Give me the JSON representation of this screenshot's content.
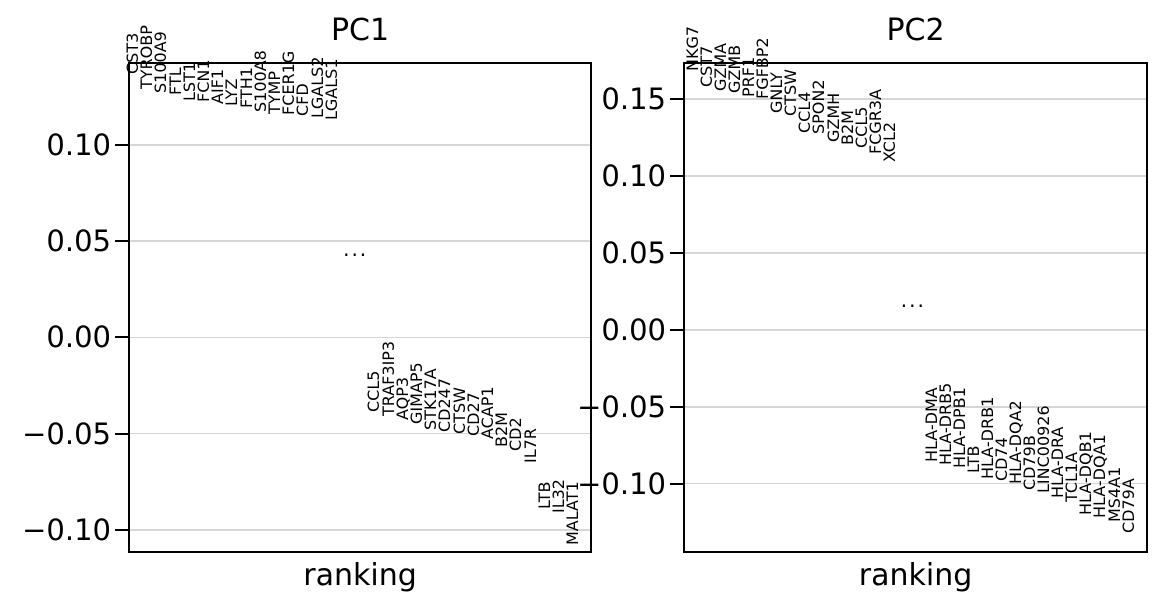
{
  "figure": {
    "background": "#ffffff",
    "text_color": "#000000",
    "grid_color": "#d6d6d6",
    "spine_color": "#000000",
    "ellipsis_label": "..."
  },
  "chart_data": [
    {
      "type": "scatter",
      "title": "PC1",
      "xlabel": "ranking",
      "ylim": [
        -0.112,
        0.143
      ],
      "grid": true,
      "yticks": [
        {
          "value": 0.1,
          "label": "0.10"
        },
        {
          "value": 0.05,
          "label": "0.05"
        },
        {
          "value": 0.0,
          "label": "0.00"
        },
        {
          "value": -0.05,
          "label": "−0.05"
        },
        {
          "value": -0.1,
          "label": "−0.10"
        }
      ],
      "series": [
        {
          "name": "top_genes",
          "points": [
            {
              "gene": "CST3",
              "loading": 0.137
            },
            {
              "gene": "TYROBP",
              "loading": 0.129
            },
            {
              "gene": "S100A9",
              "loading": 0.127
            },
            {
              "gene": "FTL",
              "loading": 0.126
            },
            {
              "gene": "LST1",
              "loading": 0.123
            },
            {
              "gene": "FCN1",
              "loading": 0.122
            },
            {
              "gene": "AIF1",
              "loading": 0.121
            },
            {
              "gene": "LYZ",
              "loading": 0.12
            },
            {
              "gene": "FTH1",
              "loading": 0.119
            },
            {
              "gene": "S100A8",
              "loading": 0.117
            },
            {
              "gene": "TYMP",
              "loading": 0.116
            },
            {
              "gene": "FCER1G",
              "loading": 0.1155
            },
            {
              "gene": "CFD",
              "loading": 0.115
            },
            {
              "gene": "LGALS2",
              "loading": 0.114
            },
            {
              "gene": "LGALS1",
              "loading": 0.113
            }
          ]
        },
        {
          "name": "bottom_genes",
          "points": [
            {
              "gene": "CCL5",
              "loading": -0.039
            },
            {
              "gene": "TRAF3IP3",
              "loading": -0.041
            },
            {
              "gene": "AQP3",
              "loading": -0.043
            },
            {
              "gene": "GIMAP5",
              "loading": -0.045
            },
            {
              "gene": "STK17A",
              "loading": -0.048
            },
            {
              "gene": "CD247",
              "loading": -0.049
            },
            {
              "gene": "CTSW",
              "loading": -0.05
            },
            {
              "gene": "CD27",
              "loading": -0.051
            },
            {
              "gene": "ACAP1",
              "loading": -0.053
            },
            {
              "gene": "B2M",
              "loading": -0.057
            },
            {
              "gene": "CD2",
              "loading": -0.059
            },
            {
              "gene": "IL7R",
              "loading": -0.065
            },
            {
              "gene": "LTB",
              "loading": -0.089
            },
            {
              "gene": "IL32",
              "loading": -0.091
            },
            {
              "gene": "MALAT1",
              "loading": -0.108
            }
          ]
        }
      ],
      "ellipsis_value": 0.039
    },
    {
      "type": "scatter",
      "title": "PC2",
      "xlabel": "ranking",
      "ylim": [
        -0.145,
        0.174
      ],
      "grid": true,
      "yticks": [
        {
          "value": 0.15,
          "label": "0.15"
        },
        {
          "value": 0.1,
          "label": "0.10"
        },
        {
          "value": 0.05,
          "label": "0.05"
        },
        {
          "value": 0.0,
          "label": "0.00"
        },
        {
          "value": -0.05,
          "label": "−0.05"
        },
        {
          "value": -0.1,
          "label": "−0.10"
        }
      ],
      "series": [
        {
          "name": "top_genes",
          "points": [
            {
              "gene": "NKG7",
              "loading": 0.168
            },
            {
              "gene": "CST7",
              "loading": 0.158
            },
            {
              "gene": "GZMA",
              "loading": 0.155
            },
            {
              "gene": "GZMB",
              "loading": 0.154
            },
            {
              "gene": "PRF1",
              "loading": 0.151
            },
            {
              "gene": "FGFBP2",
              "loading": 0.15
            },
            {
              "gene": "GNLY",
              "loading": 0.141
            },
            {
              "gene": "CTSW",
              "loading": 0.139
            },
            {
              "gene": "CCL4",
              "loading": 0.128
            },
            {
              "gene": "SPON2",
              "loading": 0.127
            },
            {
              "gene": "GZMH",
              "loading": 0.122
            },
            {
              "gene": "B2M",
              "loading": 0.12
            },
            {
              "gene": "CCL5",
              "loading": 0.118
            },
            {
              "gene": "FCGR3A",
              "loading": 0.114
            },
            {
              "gene": "XCL2",
              "loading": 0.109
            }
          ]
        },
        {
          "name": "bottom_genes",
          "points": [
            {
              "gene": "HLA-DMA",
              "loading": -0.086
            },
            {
              "gene": "HLA-DRB5",
              "loading": -0.088
            },
            {
              "gene": "HLA-DPB1",
              "loading": -0.09
            },
            {
              "gene": "LTB",
              "loading": -0.093
            },
            {
              "gene": "HLA-DRB1",
              "loading": -0.097
            },
            {
              "gene": "CD74",
              "loading": -0.098
            },
            {
              "gene": "HLA-DQA2",
              "loading": -0.1
            },
            {
              "gene": "CD79B",
              "loading": -0.104
            },
            {
              "gene": "LINC00926",
              "loading": -0.106
            },
            {
              "gene": "HLA-DRA",
              "loading": -0.109
            },
            {
              "gene": "TCL1A",
              "loading": -0.112
            },
            {
              "gene": "HLA-DQB1",
              "loading": -0.12
            },
            {
              "gene": "HLA-DQA1",
              "loading": -0.122
            },
            {
              "gene": "MS4A1",
              "loading": -0.125
            },
            {
              "gene": "CD79A",
              "loading": -0.132
            }
          ]
        }
      ],
      "ellipsis_value": 0.011
    }
  ]
}
